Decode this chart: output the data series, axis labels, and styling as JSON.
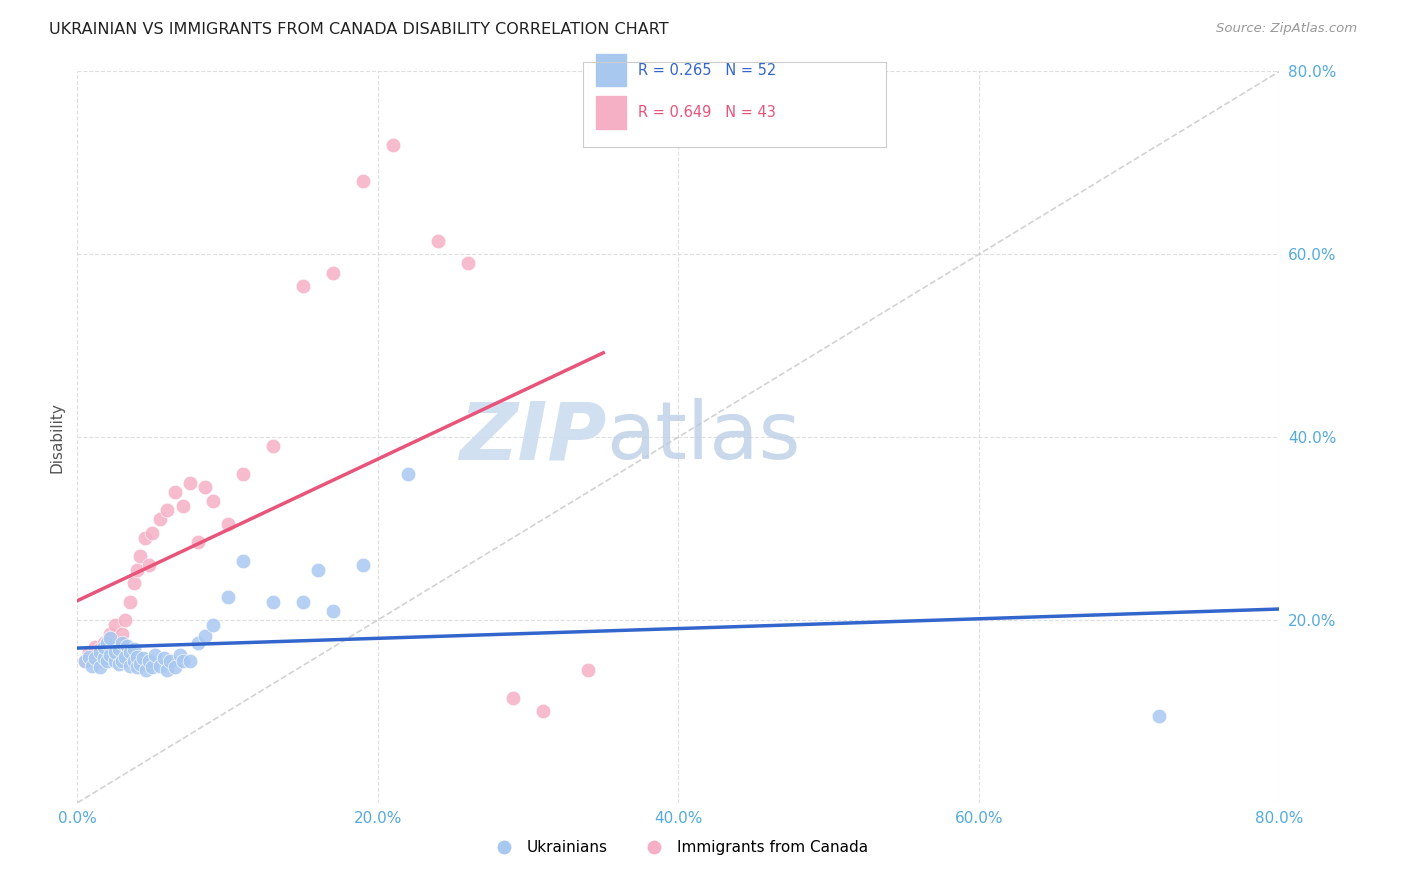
{
  "title": "UKRAINIAN VS IMMIGRANTS FROM CANADA DISABILITY CORRELATION CHART",
  "source": "Source: ZipAtlas.com",
  "ylabel": "Disability",
  "xlim": [
    0.0,
    0.8
  ],
  "ylim": [
    0.0,
    0.8
  ],
  "xticks": [
    0.0,
    0.2,
    0.4,
    0.6,
    0.8
  ],
  "yticks": [
    0.0,
    0.2,
    0.4,
    0.6,
    0.8
  ],
  "xticklabels": [
    "0.0%",
    "20.0%",
    "40.0%",
    "60.0%",
    "80.0%"
  ],
  "right_yticklabels": [
    "",
    "20.0%",
    "40.0%",
    "60.0%",
    "80.0%"
  ],
  "grid_color": "#d8d8d8",
  "background_color": "#ffffff",
  "diagonal_line_color": "#c0c0c0",
  "ukrainian_color": "#a8c8f0",
  "canadian_color": "#f5b0c5",
  "ukrainian_line_color": "#3366cc",
  "canadian_line_color": "#e8547a",
  "watermark_zip": "ZIP",
  "watermark_atlas": "atlas",
  "watermark_color_zip": "#ccddf5",
  "watermark_color_atlas": "#c0d4e8",
  "legend_entries": [
    {
      "label": "R = 0.265   N = 52",
      "color": "#3366cc",
      "patch_color": "#a8c8f0"
    },
    {
      "label": "R = 0.649   N = 43",
      "color": "#e8547a",
      "patch_color": "#f5b0c5"
    }
  ],
  "bottom_legend": [
    {
      "label": "Ukrainians",
      "color": "#a8c8f0"
    },
    {
      "label": "Immigrants from Canada",
      "color": "#f5b0c5"
    }
  ],
  "ukrainian_x": [
    0.005,
    0.008,
    0.01,
    0.012,
    0.015,
    0.015,
    0.018,
    0.018,
    0.02,
    0.02,
    0.022,
    0.022,
    0.025,
    0.025,
    0.028,
    0.028,
    0.03,
    0.03,
    0.032,
    0.033,
    0.035,
    0.035,
    0.038,
    0.038,
    0.04,
    0.04,
    0.042,
    0.044,
    0.046,
    0.048,
    0.05,
    0.052,
    0.055,
    0.058,
    0.06,
    0.062,
    0.065,
    0.068,
    0.07,
    0.075,
    0.08,
    0.085,
    0.09,
    0.1,
    0.11,
    0.13,
    0.15,
    0.16,
    0.17,
    0.19,
    0.22,
    0.72
  ],
  "ukrainian_y": [
    0.155,
    0.16,
    0.15,
    0.158,
    0.148,
    0.165,
    0.158,
    0.17,
    0.155,
    0.175,
    0.162,
    0.18,
    0.155,
    0.165,
    0.152,
    0.168,
    0.155,
    0.175,
    0.16,
    0.172,
    0.15,
    0.165,
    0.155,
    0.168,
    0.148,
    0.16,
    0.152,
    0.158,
    0.145,
    0.155,
    0.148,
    0.162,
    0.15,
    0.158,
    0.145,
    0.155,
    0.148,
    0.162,
    0.155,
    0.155,
    0.175,
    0.182,
    0.195,
    0.225,
    0.265,
    0.22,
    0.22,
    0.255,
    0.21,
    0.26,
    0.36,
    0.095
  ],
  "canadian_x": [
    0.005,
    0.008,
    0.01,
    0.012,
    0.015,
    0.015,
    0.018,
    0.018,
    0.02,
    0.02,
    0.022,
    0.025,
    0.025,
    0.028,
    0.03,
    0.032,
    0.035,
    0.038,
    0.04,
    0.042,
    0.045,
    0.048,
    0.05,
    0.055,
    0.06,
    0.065,
    0.07,
    0.075,
    0.08,
    0.085,
    0.09,
    0.1,
    0.11,
    0.13,
    0.15,
    0.17,
    0.19,
    0.21,
    0.24,
    0.26,
    0.29,
    0.31,
    0.34
  ],
  "canadian_y": [
    0.155,
    0.165,
    0.158,
    0.17,
    0.155,
    0.168,
    0.165,
    0.175,
    0.16,
    0.175,
    0.185,
    0.17,
    0.195,
    0.175,
    0.185,
    0.2,
    0.22,
    0.24,
    0.255,
    0.27,
    0.29,
    0.26,
    0.295,
    0.31,
    0.32,
    0.34,
    0.325,
    0.35,
    0.285,
    0.345,
    0.33,
    0.305,
    0.36,
    0.39,
    0.565,
    0.58,
    0.68,
    0.72,
    0.615,
    0.59,
    0.115,
    0.1,
    0.145
  ]
}
